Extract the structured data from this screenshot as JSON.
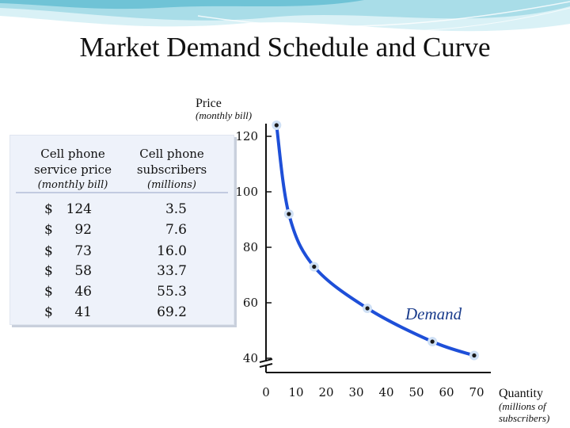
{
  "title": "Market Demand Schedule and Curve",
  "schedule": {
    "headers": [
      {
        "title_line1": "Cell phone",
        "title_line2": "service price",
        "subtitle": "(monthly bill)"
      },
      {
        "title_line1": "Cell phone",
        "title_line2": "subscribers",
        "subtitle": "(millions)"
      }
    ],
    "rows": [
      {
        "currency": "$",
        "price": "124",
        "subscribers": "3.5"
      },
      {
        "currency": "$",
        "price": "92",
        "subscribers": "7.6"
      },
      {
        "currency": "$",
        "price": "73",
        "subscribers": "16.0"
      },
      {
        "currency": "$",
        "price": "58",
        "subscribers": "33.7"
      },
      {
        "currency": "$",
        "price": "46",
        "subscribers": "55.3"
      },
      {
        "currency": "$",
        "price": "41",
        "subscribers": "69.2"
      }
    ]
  },
  "colors": {
    "curve": "#1e4fd8",
    "point_fill": "#1a1a1a",
    "point_halo": "#cfe0f5",
    "curve_label": "#1a3c8c",
    "wave_light": "#d9f1f6",
    "wave_mid": "#a9dde8",
    "wave_dark": "#6fc3d6",
    "table_bg": "#eef2fa"
  },
  "chart_data": {
    "type": "line",
    "title": "Market Demand Schedule and Curve",
    "ylabel": "Price",
    "ylabel_sub": "(monthly bill)",
    "xlabel": "Quantity",
    "xlabel_sub": "(millions of subscribers)",
    "x_ticks": [
      0,
      10,
      20,
      30,
      40,
      50,
      60,
      70
    ],
    "y_ticks": [
      40,
      60,
      80,
      100,
      120
    ],
    "xlim": [
      0,
      75
    ],
    "ylim": [
      40,
      124
    ],
    "axis_break": true,
    "grid": false,
    "series": [
      {
        "name": "Demand",
        "x": [
          3.5,
          7.6,
          16.0,
          33.7,
          55.3,
          69.2
        ],
        "y": [
          124,
          92,
          73,
          58,
          46,
          41
        ]
      }
    ],
    "curve_label": "Demand"
  }
}
